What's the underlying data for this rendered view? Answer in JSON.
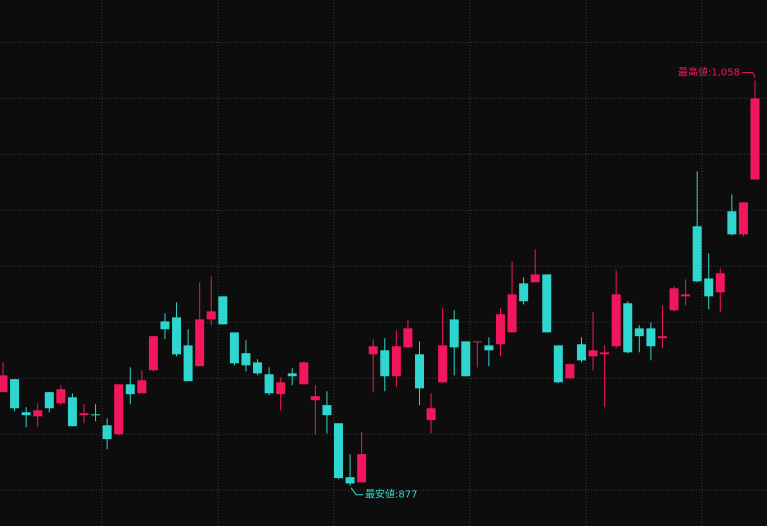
{
  "chart_data": {
    "type": "candlestick",
    "open": [
      918.8,
      924.6,
      909.8,
      908.0,
      918.8,
      913.8,
      916.5,
      908.5,
      908.9,
      904.0,
      900.0,
      922.3,
      918.3,
      928.6,
      950.4,
      952.2,
      939.7,
      930.4,
      951.3,
      961.6,
      945.5,
      936.2,
      932.1,
      926.8,
      917.9,
      927.2,
      922.3,
      915.2,
      913.0,
      904.9,
      880.8,
      878.5,
      935.7,
      937.5,
      925.9,
      938.8,
      935.7,
      906.3,
      923.2,
      951.3,
      941.5,
      941.1,
      939.7,
      940.2,
      945.5,
      967.4,
      967.9,
      971.4,
      939.7,
      925.0,
      940.2,
      934.8,
      935.7,
      939.3,
      958.5,
      947.3,
      947.3,
      942.9,
      955.4,
      961.6,
      992.9,
      969.6,
      963.4,
      999.6,
      989.3,
      1013.8
    ],
    "high": [
      932.1,
      924.6,
      912.1,
      913.8,
      918.8,
      921.9,
      918.3,
      913.4,
      913.4,
      907.1,
      922.3,
      929.9,
      928.6,
      943.8,
      954.0,
      958.9,
      946.9,
      967.9,
      970.5,
      961.6,
      945.5,
      942.0,
      933.5,
      929.9,
      925.4,
      929.5,
      932.6,
      921.9,
      919.2,
      904.9,
      891.1,
      900.9,
      942.4,
      942.9,
      946.4,
      950.9,
      941.5,
      918.3,
      956.3,
      955.4,
      941.5,
      941.5,
      943.3,
      956.3,
      977.2,
      970.1,
      982.6,
      971.4,
      939.7,
      931.7,
      943.3,
      954.5,
      939.7,
      973.2,
      959.4,
      948.7,
      950.0,
      957.6,
      966.1,
      969.2,
      1017.4,
      980.8,
      974.1,
      1007.1,
      1003.6,
      1058
    ],
    "low": [
      918.8,
      910.3,
      903.1,
      903.1,
      909.8,
      913.0,
      903.6,
      904.9,
      905.8,
      893.3,
      899.6,
      913.4,
      918.3,
      928.1,
      942.4,
      934.8,
      923.7,
      930.4,
      948.7,
      949.1,
      930.8,
      928.1,
      926.3,
      917.4,
      910.7,
      921.9,
      922.3,
      900.0,
      900.4,
      879.9,
      877,
      878.5,
      918.8,
      919.2,
      921.0,
      938.4,
      913.0,
      900.4,
      922.8,
      926.3,
      925.9,
      929.9,
      930.4,
      934.8,
      945.5,
      958.0,
      967.9,
      945.5,
      922.8,
      924.6,
      932.1,
      928.6,
      912.1,
      938.4,
      936.2,
      936.6,
      933.0,
      938.4,
      954.9,
      957.6,
      967.9,
      955.8,
      954.5,
      988.8,
      988.4,
      1013.8
    ],
    "close": [
      926.3,
      911.6,
      908.5,
      910.7,
      911.6,
      920.1,
      903.6,
      909.4,
      908.5,
      897.8,
      922.3,
      917.9,
      924.1,
      943.8,
      946.9,
      935.7,
      923.7,
      951.3,
      954.9,
      949.1,
      931.7,
      930.8,
      927.2,
      918.3,
      923.2,
      925.9,
      932.1,
      917.0,
      908.5,
      880.4,
      878,
      891.1,
      939.3,
      925.9,
      939.3,
      947.3,
      920.5,
      911.6,
      939.7,
      938.8,
      925.9,
      941.5,
      937.5,
      953.6,
      962.5,
      959.4,
      971.4,
      945.5,
      923.2,
      931.3,
      933.0,
      937.5,
      936.6,
      962.5,
      936.6,
      943.8,
      939.3,
      943.8,
      965.2,
      962.5,
      968.3,
      961.6,
      971.9,
      989.3,
      1003.6,
      1050.0
    ],
    "up_color": "#f2175c",
    "down_color": "#2fd6cf",
    "ylim": [
      859,
      1094
    ],
    "yticks": [
      875,
      900,
      925,
      950,
      975,
      1000,
      1025,
      1050,
      1075
    ],
    "grid": true,
    "annotations": [
      {
        "text": "最高値:1,058"
      },
      {
        "text": "最安値:877"
      }
    ]
  }
}
